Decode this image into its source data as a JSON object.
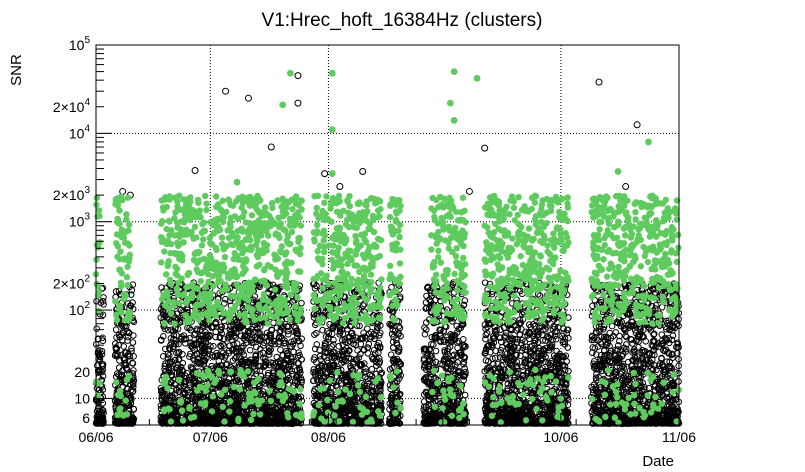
{
  "chart_data": {
    "type": "scatter",
    "title": "V1:Hrec_hoft_16384Hz (clusters)",
    "xlabel": "Date",
    "ylabel": "SNR",
    "yscale": "log",
    "ylim": [
      5,
      100000
    ],
    "xlim": [
      "2023-06-06",
      "2023-11-06"
    ],
    "grid": "dotted",
    "x_ticks": [
      {
        "date": "2023-06-06",
        "label": "06/06"
      },
      {
        "date": "2023-07-06",
        "label": "07/06"
      },
      {
        "date": "2023-08-06",
        "label": "08/06"
      },
      {
        "date": "2023-10-06",
        "label": "10/06"
      },
      {
        "date": "2023-11-06",
        "label": "11/06"
      }
    ],
    "y_ticks": [
      {
        "value": 6,
        "label": "6"
      },
      {
        "value": 10,
        "label": "10"
      },
      {
        "value": 20,
        "label": "20"
      },
      {
        "value": 100,
        "label": "10",
        "sup": "2"
      },
      {
        "value": 200,
        "label": "2×10",
        "sup": "2"
      },
      {
        "value": 1000,
        "label": "10",
        "sup": "3"
      },
      {
        "value": 2000,
        "label": "2×10",
        "sup": "3"
      },
      {
        "value": 10000,
        "label": "10",
        "sup": "4"
      },
      {
        "value": 20000,
        "label": "2×10",
        "sup": "4"
      },
      {
        "value": 100000,
        "label": "10",
        "sup": "5"
      }
    ],
    "series": [
      {
        "marker": "open-circle",
        "color": "#000000",
        "segments": [
          [
            "2023-06-06",
            "2023-06-08"
          ],
          [
            "2023-06-11",
            "2023-06-16"
          ],
          [
            "2023-06-23",
            "2023-07-30"
          ],
          [
            "2023-08-02",
            "2023-08-20"
          ],
          [
            "2023-08-22",
            "2023-08-25"
          ],
          [
            "2023-08-31",
            "2023-09-11"
          ],
          [
            "2023-09-16",
            "2023-10-08"
          ],
          [
            "2023-10-14",
            "2023-11-06"
          ]
        ],
        "notable_points": [
          [
            "2023-07-10",
            30000
          ],
          [
            "2023-07-16",
            25000
          ],
          [
            "2023-07-22",
            7000
          ],
          [
            "2023-07-29",
            45000
          ],
          [
            "2023-07-29",
            22000
          ],
          [
            "2023-08-05",
            3500
          ],
          [
            "2023-08-09",
            2500
          ],
          [
            "2023-08-15",
            3700
          ],
          [
            "2023-09-12",
            2200
          ],
          [
            "2023-09-16",
            6800
          ],
          [
            "2023-10-16",
            38000
          ],
          [
            "2023-10-23",
            2500
          ],
          [
            "2023-10-26",
            12500
          ],
          [
            "2023-06-13",
            2200
          ],
          [
            "2023-06-15",
            2000
          ],
          [
            "2023-07-02",
            3800
          ]
        ]
      },
      {
        "marker": "filled-circle",
        "color": "#5fcb5f",
        "segments": [
          [
            "2023-06-06",
            "2023-06-07"
          ],
          [
            "2023-06-11",
            "2023-06-15"
          ],
          [
            "2023-06-23",
            "2023-07-30"
          ],
          [
            "2023-08-02",
            "2023-08-20"
          ],
          [
            "2023-08-22",
            "2023-08-25"
          ],
          [
            "2023-09-02",
            "2023-09-11"
          ],
          [
            "2023-09-16",
            "2023-10-08"
          ],
          [
            "2023-10-14",
            "2023-11-06"
          ]
        ],
        "notable_points": [
          [
            "2023-07-27",
            48000
          ],
          [
            "2023-07-25",
            21000
          ],
          [
            "2023-08-07",
            48000
          ],
          [
            "2023-08-07",
            11000
          ],
          [
            "2023-08-07",
            3500
          ],
          [
            "2023-09-08",
            50000
          ],
          [
            "2023-09-07",
            22000
          ],
          [
            "2023-09-08",
            14000
          ],
          [
            "2023-09-14",
            42000
          ],
          [
            "2023-10-21",
            3700
          ],
          [
            "2023-10-29",
            8000
          ],
          [
            "2023-07-13",
            2800
          ]
        ]
      }
    ]
  }
}
